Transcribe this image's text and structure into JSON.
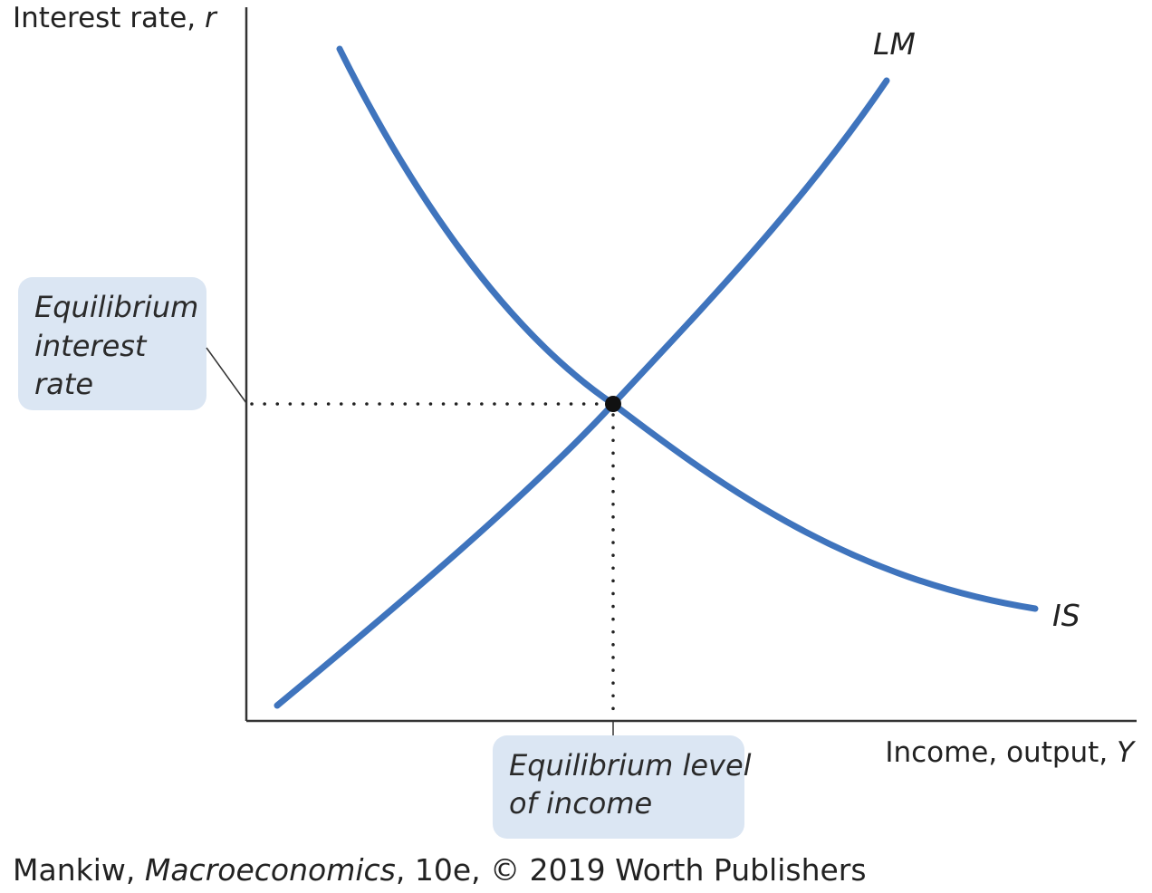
{
  "axes": {
    "y_label_text": "Interest rate, ",
    "y_label_var": "r",
    "x_label_text": "Income, output, ",
    "x_label_var": "Y"
  },
  "curves": {
    "lm": {
      "label": "LM"
    },
    "is": {
      "label": "IS"
    }
  },
  "callouts": {
    "interest_rate": {
      "lines": [
        "Equilibrium",
        "interest",
        "rate"
      ]
    },
    "income": {
      "lines": [
        "Equilibrium level",
        "of income"
      ]
    }
  },
  "colors": {
    "curve": "#3f74bd",
    "callout_bg": "#dbe6f3",
    "axis": "#333333",
    "equilibrium_point": "#111111"
  },
  "credit": {
    "author": "Mankiw, ",
    "title": "Macroeconomics",
    "rest": ", 10e, © 2019 Worth Publishers"
  }
}
